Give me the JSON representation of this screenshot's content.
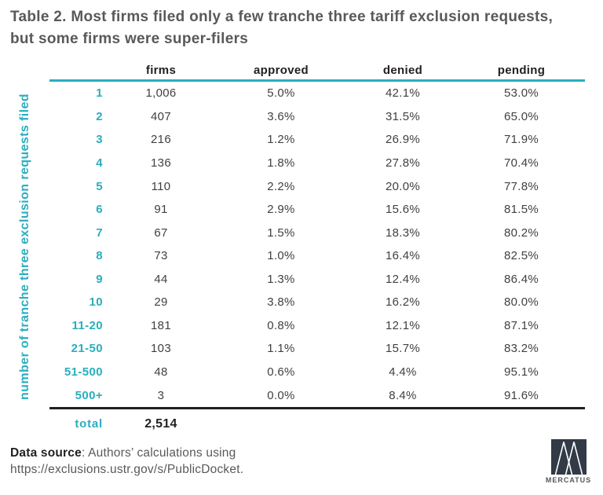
{
  "title": "Table 2. Most firms filed only a few tranche three tariff exclusion requests, but some firms were super-filers",
  "axis_label": "number of tranche three exclusion requests filed",
  "chart_data": {
    "type": "table",
    "title": "Table 2. Most firms filed only a few tranche three tariff exclusion requests, but some firms were super-filers",
    "row_axis_label": "number of tranche three exclusion requests filed",
    "columns": [
      "firms",
      "approved",
      "denied",
      "pending"
    ],
    "rows": [
      {
        "label": "1",
        "firms": "1,006",
        "approved": "5.0%",
        "denied": "42.1%",
        "pending": "53.0%"
      },
      {
        "label": "2",
        "firms": "407",
        "approved": "3.6%",
        "denied": "31.5%",
        "pending": "65.0%"
      },
      {
        "label": "3",
        "firms": "216",
        "approved": "1.2%",
        "denied": "26.9%",
        "pending": "71.9%"
      },
      {
        "label": "4",
        "firms": "136",
        "approved": "1.8%",
        "denied": "27.8%",
        "pending": "70.4%"
      },
      {
        "label": "5",
        "firms": "110",
        "approved": "2.2%",
        "denied": "20.0%",
        "pending": "77.8%"
      },
      {
        "label": "6",
        "firms": "91",
        "approved": "2.9%",
        "denied": "15.6%",
        "pending": "81.5%"
      },
      {
        "label": "7",
        "firms": "67",
        "approved": "1.5%",
        "denied": "18.3%",
        "pending": "80.2%"
      },
      {
        "label": "8",
        "firms": "73",
        "approved": "1.0%",
        "denied": "16.4%",
        "pending": "82.5%"
      },
      {
        "label": "9",
        "firms": "44",
        "approved": "1.3%",
        "denied": "12.4%",
        "pending": "86.4%"
      },
      {
        "label": "10",
        "firms": "29",
        "approved": "3.8%",
        "denied": "16.2%",
        "pending": "80.0%"
      },
      {
        "label": "11-20",
        "firms": "181",
        "approved": "0.8%",
        "denied": "12.1%",
        "pending": "87.1%"
      },
      {
        "label": "21-50",
        "firms": "103",
        "approved": "1.1%",
        "denied": "15.7%",
        "pending": "83.2%"
      },
      {
        "label": "51-500",
        "firms": "48",
        "approved": "0.6%",
        "denied": "4.4%",
        "pending": "95.1%"
      },
      {
        "label": "500+",
        "firms": "3",
        "approved": "0.0%",
        "denied": "8.4%",
        "pending": "91.6%"
      }
    ],
    "total": {
      "label": "total",
      "firms": "2,514"
    }
  },
  "footer": {
    "source_label": "Data source",
    "source_text": ": Authors’ calculations using",
    "source_line2": "https://exclusions.ustr.gov/s/PublicDocket."
  },
  "logo": {
    "text": "MERCATUS"
  },
  "colors": {
    "teal": "#29aebe",
    "title_gray": "#58595b",
    "value_gray": "#414042",
    "ink": "#231f20",
    "logo_navy": "#323a47"
  }
}
